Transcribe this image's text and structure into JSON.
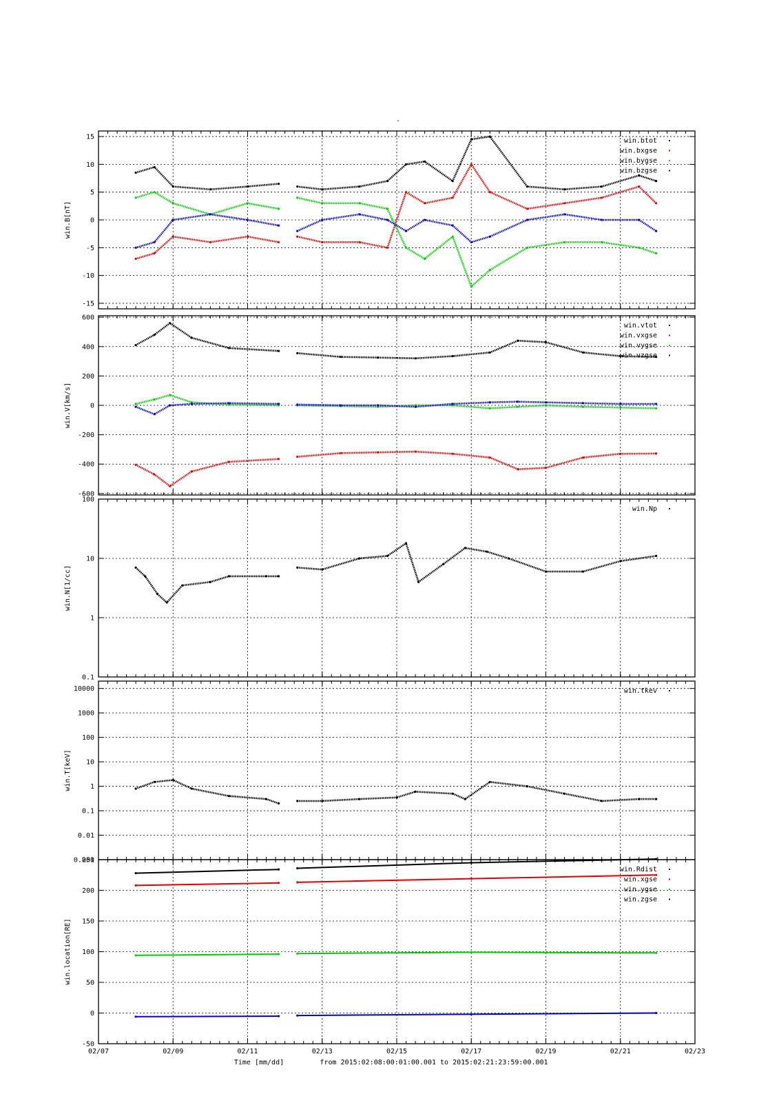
{
  "page_title": "-",
  "time_axis": {
    "label": "Time [mm/dd]",
    "range_text": "from 2015:02:08:00:01:00.001  to  2015:02:21:23:59:00.001",
    "xlim": [
      "2015-02-07T00:00",
      "2015-02-23T00:00"
    ],
    "tick_labels": [
      "02/07",
      "02/09",
      "02/11",
      "02/13",
      "02/15",
      "02/17",
      "02/19",
      "02/21",
      "02/23"
    ]
  },
  "colors": {
    "black": "#000000",
    "red": "#dd0000",
    "green": "#00cc00",
    "blue": "#0000cc"
  },
  "chart_data": [
    {
      "type": "scatter",
      "ylabel": "win.B[nT]",
      "ylim": [
        -16,
        16
      ],
      "yticks": [
        -15,
        -10,
        -5,
        0,
        5,
        10,
        15
      ],
      "ytick_labels": [
        "-15",
        "-10",
        "-5",
        "0",
        "5",
        "10",
        "15"
      ],
      "grid": true,
      "legend_position": "top-right",
      "series": [
        {
          "name": "win.btot",
          "color": "#000000",
          "x": [
            "2015-02-08T00:00",
            "2015-02-08T12:00",
            "2015-02-09T00:00",
            "2015-02-10T00:00",
            "2015-02-11T00:00",
            "2015-02-11T20:00",
            "2015-02-12T08:00",
            "2015-02-13T00:00",
            "2015-02-14T00:00",
            "2015-02-14T18:00",
            "2015-02-15T06:00",
            "2015-02-15T18:00",
            "2015-02-16T12:00",
            "2015-02-17T00:00",
            "2015-02-17T12:00",
            "2015-02-18T12:00",
            "2015-02-19T12:00",
            "2015-02-20T12:00",
            "2015-02-21T12:00",
            "2015-02-21T23:00"
          ],
          "y": [
            8.5,
            9.5,
            6,
            5.5,
            6,
            6.5,
            6,
            5.5,
            6,
            7,
            10,
            10.5,
            7,
            14.5,
            15,
            6,
            5.5,
            6,
            8,
            7
          ]
        },
        {
          "name": "win.bxgse",
          "color": "#dd0000",
          "x": [
            "2015-02-08T00:00",
            "2015-02-08T12:00",
            "2015-02-09T00:00",
            "2015-02-10T00:00",
            "2015-02-11T00:00",
            "2015-02-11T20:00",
            "2015-02-12T08:00",
            "2015-02-13T00:00",
            "2015-02-14T00:00",
            "2015-02-14T18:00",
            "2015-02-15T06:00",
            "2015-02-15T18:00",
            "2015-02-16T12:00",
            "2015-02-17T00:00",
            "2015-02-17T12:00",
            "2015-02-18T12:00",
            "2015-02-19T12:00",
            "2015-02-20T12:00",
            "2015-02-21T12:00",
            "2015-02-21T23:00"
          ],
          "y": [
            -7,
            -6,
            -3,
            -4,
            -3,
            -4,
            -3,
            -4,
            -4,
            -5,
            5,
            3,
            4,
            10,
            5,
            2,
            3,
            4,
            6,
            3
          ]
        },
        {
          "name": "win.bygse",
          "color": "#00cc00",
          "x": [
            "2015-02-08T00:00",
            "2015-02-08T12:00",
            "2015-02-09T00:00",
            "2015-02-10T00:00",
            "2015-02-11T00:00",
            "2015-02-11T20:00",
            "2015-02-12T08:00",
            "2015-02-13T00:00",
            "2015-02-14T00:00",
            "2015-02-14T18:00",
            "2015-02-15T06:00",
            "2015-02-15T18:00",
            "2015-02-16T12:00",
            "2015-02-17T00:00",
            "2015-02-17T12:00",
            "2015-02-18T12:00",
            "2015-02-19T12:00",
            "2015-02-20T12:00",
            "2015-02-21T12:00",
            "2015-02-21T23:00"
          ],
          "y": [
            4,
            5,
            3,
            1,
            3,
            2,
            4,
            3,
            3,
            2,
            -5,
            -7,
            -3,
            -12,
            -9,
            -5,
            -4,
            -4,
            -5,
            -6
          ]
        },
        {
          "name": "win.bzgse",
          "color": "#0000cc",
          "x": [
            "2015-02-08T00:00",
            "2015-02-08T12:00",
            "2015-02-09T00:00",
            "2015-02-10T00:00",
            "2015-02-11T00:00",
            "2015-02-11T20:00",
            "2015-02-12T08:00",
            "2015-02-13T00:00",
            "2015-02-14T00:00",
            "2015-02-14T18:00",
            "2015-02-15T06:00",
            "2015-02-15T18:00",
            "2015-02-16T12:00",
            "2015-02-17T00:00",
            "2015-02-17T12:00",
            "2015-02-18T12:00",
            "2015-02-19T12:00",
            "2015-02-20T12:00",
            "2015-02-21T12:00",
            "2015-02-21T23:00"
          ],
          "y": [
            -5,
            -4,
            0,
            1,
            0,
            -1,
            -2,
            0,
            1,
            0,
            -2,
            0,
            -1,
            -4,
            -3,
            0,
            1,
            0,
            0,
            -2
          ]
        }
      ]
    },
    {
      "type": "scatter",
      "ylabel": "win.V[km/s]",
      "ylim": [
        -610,
        610
      ],
      "yticks": [
        -600,
        -400,
        -200,
        0,
        200,
        400,
        600
      ],
      "ytick_labels": [
        "-600",
        "-400",
        "-200",
        "0",
        "200",
        "400",
        "600"
      ],
      "grid": true,
      "legend_position": "top-right",
      "series": [
        {
          "name": "win.vtot",
          "color": "#000000",
          "x": [
            "2015-02-08T00:00",
            "2015-02-08T12:00",
            "2015-02-08T22:00",
            "2015-02-09T12:00",
            "2015-02-10T12:00",
            "2015-02-11T20:00",
            "2015-02-12T08:00",
            "2015-02-13T12:00",
            "2015-02-14T12:00",
            "2015-02-15T12:00",
            "2015-02-16T12:00",
            "2015-02-17T12:00",
            "2015-02-18T06:00",
            "2015-02-19T00:00",
            "2015-02-20T00:00",
            "2015-02-21T00:00",
            "2015-02-21T23:00"
          ],
          "y": [
            410,
            480,
            560,
            460,
            390,
            370,
            355,
            330,
            325,
            320,
            335,
            360,
            440,
            430,
            360,
            335,
            330
          ]
        },
        {
          "name": "win.vxgse",
          "color": "#dd0000",
          "x": [
            "2015-02-08T00:00",
            "2015-02-08T12:00",
            "2015-02-08T22:00",
            "2015-02-09T12:00",
            "2015-02-10T12:00",
            "2015-02-11T20:00",
            "2015-02-12T08:00",
            "2015-02-13T12:00",
            "2015-02-14T12:00",
            "2015-02-15T12:00",
            "2015-02-16T12:00",
            "2015-02-17T12:00",
            "2015-02-18T06:00",
            "2015-02-19T00:00",
            "2015-02-20T00:00",
            "2015-02-21T00:00",
            "2015-02-21T23:00"
          ],
          "y": [
            -405,
            -470,
            -550,
            -450,
            -385,
            -365,
            -350,
            -325,
            -320,
            -315,
            -330,
            -355,
            -435,
            -425,
            -355,
            -330,
            -328
          ]
        },
        {
          "name": "win.vygse",
          "color": "#00cc00",
          "x": [
            "2015-02-08T00:00",
            "2015-02-08T12:00",
            "2015-02-08T22:00",
            "2015-02-09T12:00",
            "2015-02-10T12:00",
            "2015-02-11T20:00",
            "2015-02-12T08:00",
            "2015-02-13T12:00",
            "2015-02-14T12:00",
            "2015-02-15T12:00",
            "2015-02-16T12:00",
            "2015-02-17T12:00",
            "2015-02-18T06:00",
            "2015-02-19T00:00",
            "2015-02-20T00:00",
            "2015-02-21T00:00",
            "2015-02-21T23:00"
          ],
          "y": [
            10,
            40,
            70,
            20,
            5,
            0,
            0,
            -5,
            -10,
            0,
            0,
            -20,
            -10,
            0,
            -10,
            -15,
            -20
          ]
        },
        {
          "name": "win.vzgse",
          "color": "#0000cc",
          "x": [
            "2015-02-08T00:00",
            "2015-02-08T12:00",
            "2015-02-08T22:00",
            "2015-02-09T12:00",
            "2015-02-10T12:00",
            "2015-02-11T20:00",
            "2015-02-12T08:00",
            "2015-02-13T12:00",
            "2015-02-14T12:00",
            "2015-02-15T12:00",
            "2015-02-16T12:00",
            "2015-02-17T12:00",
            "2015-02-18T06:00",
            "2015-02-19T00:00",
            "2015-02-20T00:00",
            "2015-02-21T00:00",
            "2015-02-21T23:00"
          ],
          "y": [
            -10,
            -60,
            0,
            10,
            15,
            10,
            5,
            0,
            0,
            -10,
            10,
            20,
            25,
            20,
            15,
            10,
            10
          ]
        }
      ]
    },
    {
      "type": "scatter",
      "ylabel": "win.N[1/cc]",
      "yscale": "log",
      "ylim": [
        0.1,
        100
      ],
      "yticks": [
        0.1,
        1,
        10,
        100
      ],
      "ytick_labels": [
        "0.1",
        "1",
        "10",
        "100"
      ],
      "grid": true,
      "legend_position": "top-right",
      "series": [
        {
          "name": "win.Np",
          "color": "#000000",
          "x": [
            "2015-02-08T00:00",
            "2015-02-08T06:00",
            "2015-02-08T14:00",
            "2015-02-08T20:00",
            "2015-02-09T06:00",
            "2015-02-10T00:00",
            "2015-02-10T12:00",
            "2015-02-11T12:00",
            "2015-02-11T20:00",
            "2015-02-12T08:00",
            "2015-02-13T00:00",
            "2015-02-14T00:00",
            "2015-02-14T18:00",
            "2015-02-15T06:00",
            "2015-02-15T14:00",
            "2015-02-16T06:00",
            "2015-02-16T20:00",
            "2015-02-17T10:00",
            "2015-02-18T00:00",
            "2015-02-19T00:00",
            "2015-02-20T00:00",
            "2015-02-21T00:00",
            "2015-02-21T23:00"
          ],
          "y": [
            7,
            5,
            2.5,
            1.8,
            3.5,
            4,
            5,
            5,
            5,
            7,
            6.5,
            10,
            11,
            18,
            4,
            8,
            15,
            13,
            10,
            6,
            6,
            9,
            11
          ]
        }
      ]
    },
    {
      "type": "scatter",
      "ylabel": "win.T[keV]",
      "yscale": "log",
      "ylim": [
        0.001,
        20000
      ],
      "yticks": [
        0.001,
        0.01,
        0.1,
        1,
        10,
        100,
        1000,
        10000
      ],
      "ytick_labels": [
        "0.001",
        "0.01",
        "0.1",
        "1",
        "10",
        "100",
        "1000",
        "10000"
      ],
      "grid": true,
      "legend_position": "top-right",
      "series": [
        {
          "name": "win.tkev",
          "color": "#000000",
          "x": [
            "2015-02-08T00:00",
            "2015-02-08T12:00",
            "2015-02-09T00:00",
            "2015-02-09T12:00",
            "2015-02-10T12:00",
            "2015-02-11T12:00",
            "2015-02-11T20:00",
            "2015-02-12T08:00",
            "2015-02-13T00:00",
            "2015-02-14T00:00",
            "2015-02-15T00:00",
            "2015-02-15T12:00",
            "2015-02-16T12:00",
            "2015-02-16T20:00",
            "2015-02-17T12:00",
            "2015-02-18T12:00",
            "2015-02-19T12:00",
            "2015-02-20T12:00",
            "2015-02-21T12:00",
            "2015-02-21T23:00"
          ],
          "y": [
            0.8,
            1.5,
            1.8,
            0.8,
            0.4,
            0.3,
            0.2,
            0.25,
            0.25,
            0.3,
            0.35,
            0.6,
            0.5,
            0.3,
            1.5,
            1.0,
            0.5,
            0.25,
            0.3,
            0.3
          ]
        }
      ]
    },
    {
      "type": "scatter",
      "ylabel": "win.location[RE]",
      "ylim": [
        -50,
        250
      ],
      "yticks": [
        -50,
        0,
        50,
        100,
        150,
        200,
        250
      ],
      "ytick_labels": [
        "-50",
        "0",
        "50",
        "100",
        "150",
        "200",
        "250"
      ],
      "grid": true,
      "legend_position": "top-right",
      "series": [
        {
          "name": "win.Rdist",
          "color": "#000000",
          "x": [
            "2015-02-08T00:00",
            "2015-02-11T20:00",
            "2015-02-12T08:00",
            "2015-02-17T00:00",
            "2015-02-21T23:00"
          ],
          "y": [
            228,
            234,
            236,
            245,
            251
          ]
        },
        {
          "name": "win.xgse",
          "color": "#dd0000",
          "x": [
            "2015-02-08T00:00",
            "2015-02-11T20:00",
            "2015-02-12T08:00",
            "2015-02-17T00:00",
            "2015-02-21T23:00"
          ],
          "y": [
            208,
            212,
            213,
            219,
            225
          ]
        },
        {
          "name": "win.ygse",
          "color": "#00cc00",
          "x": [
            "2015-02-08T00:00",
            "2015-02-11T20:00",
            "2015-02-12T08:00",
            "2015-02-17T00:00",
            "2015-02-21T23:00"
          ],
          "y": [
            94,
            96,
            97,
            99,
            98
          ]
        },
        {
          "name": "win.zgse",
          "color": "#0000cc",
          "x": [
            "2015-02-08T00:00",
            "2015-02-11T20:00",
            "2015-02-12T08:00",
            "2015-02-17T00:00",
            "2015-02-21T23:00"
          ],
          "y": [
            -6,
            -5,
            -4,
            -2,
            0
          ]
        }
      ]
    }
  ]
}
